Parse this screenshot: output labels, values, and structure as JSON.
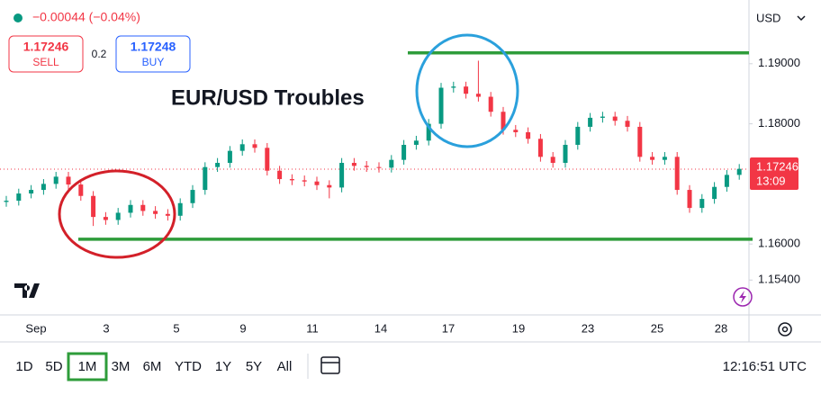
{
  "chart_data": {
    "type": "candlestick",
    "title": "EUR/USD Troubles",
    "currency": "USD",
    "change": "−0.00044 (−0.04%)",
    "sell": 1.17246,
    "sell_label": "SELL",
    "spread": 0.2,
    "buy": 1.17248,
    "buy_label": "BUY",
    "last_price": 1.17246,
    "countdown": "13:09",
    "up_color": "#089981",
    "down_color": "#f23645",
    "xticks": [
      "Sep",
      "3",
      "5",
      "9",
      "11",
      "14",
      "17",
      "19",
      "23",
      "25",
      "28"
    ],
    "open": [
      1.167,
      1.1672,
      1.1684,
      1.169,
      1.17,
      1.1712,
      1.1699,
      1.168,
      1.1645,
      1.164,
      1.1652,
      1.1665,
      1.1655,
      1.165,
      1.1647,
      1.1668,
      1.169,
      1.1728,
      1.1735,
      1.1755,
      1.1766,
      1.176,
      1.1722,
      1.1708,
      1.1706,
      1.1704,
      1.1698,
      1.1694,
      1.1735,
      1.173,
      1.1728,
      1.1727,
      1.174,
      1.1765,
      1.1772,
      1.18,
      1.186,
      1.1862,
      1.185,
      1.1845,
      1.182,
      1.179,
      1.1786,
      1.1775,
      1.1745,
      1.1735,
      1.1765,
      1.1795,
      1.181,
      1.1812,
      1.1805,
      1.1795,
      1.1745,
      1.174,
      1.1745,
      1.169,
      1.166,
      1.1675,
      1.1695,
      1.1715
    ],
    "high": [
      1.168,
      1.1692,
      1.1698,
      1.1708,
      1.172,
      1.172,
      1.1707,
      1.1688,
      1.1653,
      1.166,
      1.1673,
      1.1673,
      1.1663,
      1.1658,
      1.1676,
      1.1698,
      1.1736,
      1.1743,
      1.1763,
      1.1774,
      1.1774,
      1.1768,
      1.173,
      1.1716,
      1.1714,
      1.1712,
      1.1706,
      1.1743,
      1.1743,
      1.1738,
      1.1736,
      1.1748,
      1.1773,
      1.178,
      1.1808,
      1.1868,
      1.187,
      1.187,
      1.1905,
      1.1853,
      1.1828,
      1.1798,
      1.1794,
      1.1783,
      1.1753,
      1.1773,
      1.1803,
      1.1818,
      1.182,
      1.182,
      1.1813,
      1.1803,
      1.1753,
      1.1753,
      1.1753,
      1.1698,
      1.1683,
      1.1703,
      1.1723,
      1.1733
    ],
    "low": [
      1.1662,
      1.1664,
      1.1676,
      1.1682,
      1.1692,
      1.1691,
      1.1672,
      1.163,
      1.1632,
      1.1632,
      1.1644,
      1.1647,
      1.1642,
      1.1639,
      1.1639,
      1.166,
      1.1682,
      1.172,
      1.1727,
      1.1747,
      1.1752,
      1.1714,
      1.17,
      1.1698,
      1.1696,
      1.169,
      1.1676,
      1.1686,
      1.1722,
      1.172,
      1.1719,
      1.1719,
      1.1732,
      1.1757,
      1.1764,
      1.1792,
      1.1852,
      1.1842,
      1.1837,
      1.1812,
      1.1782,
      1.1778,
      1.1767,
      1.1737,
      1.1727,
      1.1727,
      1.1757,
      1.1787,
      1.1802,
      1.1797,
      1.1787,
      1.1737,
      1.1732,
      1.1732,
      1.1682,
      1.1652,
      1.1652,
      1.1667,
      1.1687,
      1.1707
    ],
    "close": [
      1.1672,
      1.1684,
      1.169,
      1.17,
      1.1712,
      1.1699,
      1.168,
      1.1645,
      1.164,
      1.1652,
      1.1665,
      1.1655,
      1.165,
      1.1647,
      1.1668,
      1.169,
      1.1728,
      1.1735,
      1.1755,
      1.1766,
      1.176,
      1.1722,
      1.1708,
      1.1706,
      1.1704,
      1.1698,
      1.1694,
      1.1735,
      1.173,
      1.1728,
      1.1727,
      1.174,
      1.1765,
      1.1772,
      1.18,
      1.186,
      1.1862,
      1.185,
      1.1845,
      1.182,
      1.179,
      1.1786,
      1.1775,
      1.1745,
      1.1735,
      1.1765,
      1.1795,
      1.181,
      1.1812,
      1.1805,
      1.1795,
      1.1745,
      1.174,
      1.1745,
      1.169,
      1.166,
      1.1675,
      1.1695,
      1.1715,
      1.1725
    ],
    "levels": [
      {
        "value": 1.1918,
        "color": "#2e9c3a"
      },
      {
        "value": 1.1608,
        "color": "#2e9c3a"
      }
    ],
    "ylim": [
      1.1482,
      1.2006
    ],
    "yticks": [
      {
        "value": 1.19,
        "label": "1.19000"
      },
      {
        "value": 1.18,
        "label": "1.18000"
      },
      {
        "value": 1.16,
        "label": "1.16000"
      },
      {
        "value": 1.154,
        "label": "1.15400"
      }
    ]
  },
  "ui": {
    "ranges": [
      "1D",
      "5D",
      "1M",
      "3M",
      "6M",
      "YTD",
      "1Y",
      "5Y",
      "All"
    ],
    "active_range": "1M",
    "clock": "12:16:51 UTC"
  }
}
